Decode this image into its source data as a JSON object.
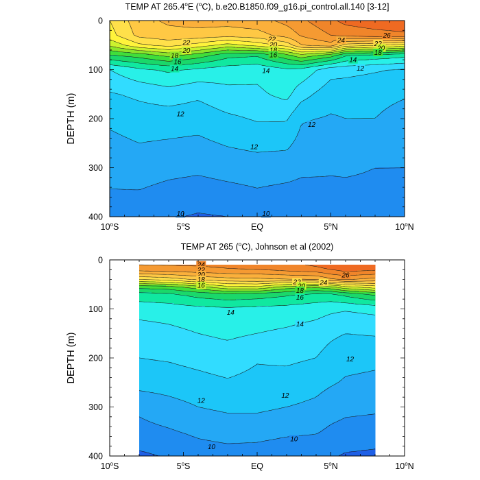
{
  "chart_data": [
    {
      "type": "contour",
      "title": "TEMP AT 265.4°E (°C), b.e20.B1850.f09_g16.pi_control.all.140 [3-12]",
      "title_parts": [
        "TEMP AT 265.4",
        "o",
        "E (",
        "o",
        "C), b.e20.B1850.f09_g16.pi_control.all.140 [3-12]"
      ],
      "xlabel": "",
      "ylabel": "DEPTH (m)",
      "x_ticks": [
        {
          "value": -10,
          "label": "10",
          "sup": "o",
          "suffix": "S"
        },
        {
          "value": -5,
          "label": "5",
          "sup": "o",
          "suffix": "S"
        },
        {
          "value": 0,
          "label": "EQ",
          "sup": "",
          "suffix": ""
        },
        {
          "value": 5,
          "label": "5",
          "sup": "o",
          "suffix": "N"
        },
        {
          "value": 10,
          "label": "10",
          "sup": "o",
          "suffix": "N"
        }
      ],
      "y_ticks": [
        0,
        100,
        200,
        300,
        400
      ],
      "xlim": [
        -10,
        10
      ],
      "ylim": [
        400,
        0
      ],
      "y_inverted": true,
      "data_xlim": [
        -10,
        10
      ],
      "contour_interval": 1,
      "color_levels": [
        {
          "max": 10,
          "color": "#1e5fe6"
        },
        {
          "max": 11,
          "color": "#1f8cf0"
        },
        {
          "max": 12,
          "color": "#24a8f5"
        },
        {
          "max": 13,
          "color": "#1cc6f8"
        },
        {
          "max": 14,
          "color": "#31dcff"
        },
        {
          "max": 15,
          "color": "#28f0e8"
        },
        {
          "max": 16,
          "color": "#10e8a0"
        },
        {
          "max": 17,
          "color": "#1ad86a"
        },
        {
          "max": 18,
          "color": "#40de3a"
        },
        {
          "max": 19,
          "color": "#8ee52a"
        },
        {
          "max": 20,
          "color": "#cdf22e"
        },
        {
          "max": 21,
          "color": "#fff33b"
        },
        {
          "max": 22,
          "color": "#ffe04a"
        },
        {
          "max": 23,
          "color": "#ffc844"
        },
        {
          "max": 24,
          "color": "#fbb03b"
        },
        {
          "max": 25,
          "color": "#f59a32"
        },
        {
          "max": 26,
          "color": "#f0852a"
        },
        {
          "max": 27,
          "color": "#ef6a22"
        },
        {
          "max": 99,
          "color": "#e8421b"
        }
      ],
      "profile_depths": [
        0,
        30,
        50,
        70,
        100,
        150,
        200,
        300,
        400
      ],
      "profiles": [
        {
          "x": -10,
          "t": [
            21.0,
            20.6,
            19.2,
            17.0,
            14.0,
            12.9,
            12.2,
            11.3,
            10.6
          ]
        },
        {
          "x": -8,
          "t": [
            22.6,
            22.3,
            20.8,
            17.5,
            14.8,
            13.2,
            12.5,
            11.5,
            10.4
          ]
        },
        {
          "x": -6,
          "t": [
            23.2,
            22.6,
            21.4,
            18.4,
            15.2,
            13.5,
            12.5,
            11.3,
            10.1
          ]
        },
        {
          "x": -4,
          "t": [
            23.4,
            22.6,
            20.6,
            17.6,
            14.8,
            13.2,
            12.4,
            11.2,
            9.9
          ]
        },
        {
          "x": -2,
          "t": [
            23.4,
            22.4,
            19.6,
            16.4,
            14.5,
            13.7,
            12.8,
            11.4,
            10.0
          ]
        },
        {
          "x": 0,
          "t": [
            23.6,
            22.6,
            20.4,
            16.2,
            14.3,
            13.8,
            13.1,
            11.5,
            10.3
          ]
        },
        {
          "x": 2,
          "t": [
            24.3,
            23.4,
            21.4,
            17.8,
            14.8,
            14.3,
            13.1,
            11.4,
            10.1
          ]
        },
        {
          "x": 3,
          "t": [
            24.8,
            24.1,
            23.0,
            18.8,
            14.7,
            13.4,
            12.1,
            11.2,
            10.2
          ]
        },
        {
          "x": 5,
          "t": [
            25.8,
            25.0,
            23.6,
            17.6,
            13.4,
            12.4,
            11.9,
            11.1,
            10.5
          ]
        },
        {
          "x": 6,
          "t": [
            26.3,
            25.3,
            21.6,
            16.2,
            13.3,
            12.4,
            12.0,
            11.1,
            10.6
          ]
        },
        {
          "x": 8,
          "t": [
            26.6,
            25.6,
            21.2,
            15.8,
            13.1,
            12.3,
            12.0,
            11.0,
            10.7
          ]
        },
        {
          "x": 10,
          "t": [
            26.7,
            25.8,
            20.6,
            15.4,
            12.9,
            12.1,
            11.6,
            11.0,
            10.6
          ]
        }
      ],
      "contour_labels": [
        {
          "text": "22",
          "x": -4.8,
          "depth": 45
        },
        {
          "text": "20",
          "x": -4.8,
          "depth": 61
        },
        {
          "text": "18",
          "x": -5.6,
          "depth": 71
        },
        {
          "text": "16",
          "x": -5.4,
          "depth": 84
        },
        {
          "text": "14",
          "x": -5.6,
          "depth": 98
        },
        {
          "text": "14",
          "x": 0.6,
          "depth": 102
        },
        {
          "text": "12",
          "x": -5.2,
          "depth": 190
        },
        {
          "text": "12",
          "x": -0.2,
          "depth": 257
        },
        {
          "text": "12",
          "x": 3.7,
          "depth": 212
        },
        {
          "text": "10",
          "x": -5.2,
          "depth": 394
        },
        {
          "text": "10",
          "x": 0.6,
          "depth": 394
        },
        {
          "text": "22",
          "x": 1.0,
          "depth": 38
        },
        {
          "text": "20",
          "x": 1.1,
          "depth": 49
        },
        {
          "text": "18",
          "x": 1.1,
          "depth": 60
        },
        {
          "text": "16",
          "x": 1.1,
          "depth": 70
        },
        {
          "text": "24",
          "x": 5.7,
          "depth": 40
        },
        {
          "text": "26",
          "x": 8.8,
          "depth": 30
        },
        {
          "text": "22",
          "x": 8.2,
          "depth": 47
        },
        {
          "text": "20",
          "x": 8.4,
          "depth": 56
        },
        {
          "text": "18",
          "x": 8.2,
          "depth": 65
        },
        {
          "text": "14",
          "x": 6.5,
          "depth": 80
        },
        {
          "text": "12",
          "x": 7.0,
          "depth": 97
        }
      ]
    },
    {
      "type": "contour",
      "title": "TEMP AT 265 (°C), Johnson et al (2002)",
      "title_parts": [
        "TEMP AT 265 (",
        "o",
        "C), Johnson et al (2002)"
      ],
      "xlabel": "",
      "ylabel": "DEPTH (m)",
      "x_ticks": [
        {
          "value": -10,
          "label": "10",
          "sup": "o",
          "suffix": "S"
        },
        {
          "value": -5,
          "label": "5",
          "sup": "o",
          "suffix": "S"
        },
        {
          "value": 0,
          "label": "EQ",
          "sup": "",
          "suffix": ""
        },
        {
          "value": 5,
          "label": "5",
          "sup": "o",
          "suffix": "N"
        },
        {
          "value": 10,
          "label": "10",
          "sup": "o",
          "suffix": "N"
        }
      ],
      "y_ticks": [
        0,
        100,
        200,
        300,
        400
      ],
      "xlim": [
        -10,
        10
      ],
      "ylim": [
        400,
        0
      ],
      "y_inverted": true,
      "data_xlim": [
        -8,
        8
      ],
      "data_ylim": [
        10,
        400
      ],
      "contour_interval": 1,
      "color_levels": [
        {
          "max": 10,
          "color": "#1e5fe6"
        },
        {
          "max": 11,
          "color": "#1f8cf0"
        },
        {
          "max": 12,
          "color": "#24a8f5"
        },
        {
          "max": 13,
          "color": "#1cc6f8"
        },
        {
          "max": 14,
          "color": "#31dcff"
        },
        {
          "max": 15,
          "color": "#28f0e8"
        },
        {
          "max": 16,
          "color": "#10e8a0"
        },
        {
          "max": 17,
          "color": "#1ad86a"
        },
        {
          "max": 18,
          "color": "#40de3a"
        },
        {
          "max": 19,
          "color": "#8ee52a"
        },
        {
          "max": 20,
          "color": "#cdf22e"
        },
        {
          "max": 21,
          "color": "#fff33b"
        },
        {
          "max": 22,
          "color": "#ffe04a"
        },
        {
          "max": 23,
          "color": "#ffc844"
        },
        {
          "max": 24,
          "color": "#fbb03b"
        },
        {
          "max": 25,
          "color": "#f59a32"
        },
        {
          "max": 26,
          "color": "#f0852a"
        },
        {
          "max": 27,
          "color": "#ef6a22"
        },
        {
          "max": 99,
          "color": "#e8421b"
        }
      ],
      "profile_depths": [
        0,
        20,
        40,
        55,
        70,
        100,
        150,
        200,
        250,
        300,
        350,
        400
      ],
      "profiles": [
        {
          "x": -8,
          "t": [
            25.6,
            24.4,
            21.0,
            17.4,
            15.6,
            14.4,
            13.5,
            13.0,
            12.4,
            11.2,
            10.7,
            9.8
          ]
        },
        {
          "x": -6,
          "t": [
            25.5,
            24.6,
            21.4,
            17.6,
            15.8,
            14.5,
            13.7,
            13.1,
            12.5,
            11.6,
            10.9,
            10.1
          ]
        },
        {
          "x": -4,
          "t": [
            25.5,
            24.7,
            22.2,
            18.6,
            16.4,
            14.7,
            14.0,
            13.3,
            12.7,
            12.0,
            11.2,
            10.5
          ]
        },
        {
          "x": -2,
          "t": [
            25.6,
            24.9,
            22.6,
            19.8,
            16.8,
            14.8,
            14.2,
            13.5,
            12.9,
            12.2,
            11.4,
            10.6
          ]
        },
        {
          "x": 0,
          "t": [
            25.7,
            25.0,
            22.7,
            19.9,
            16.6,
            14.7,
            14.0,
            13.1,
            12.7,
            12.2,
            11.4,
            10.5
          ]
        },
        {
          "x": 2,
          "t": [
            26.0,
            25.3,
            22.9,
            18.6,
            16.2,
            14.6,
            13.8,
            13.2,
            12.6,
            12.0,
            11.2,
            10.3
          ]
        },
        {
          "x": 4,
          "t": [
            26.8,
            25.6,
            23.0,
            18.2,
            15.8,
            14.4,
            13.5,
            13.0,
            12.3,
            11.8,
            11.1,
            10.2
          ]
        },
        {
          "x": 5,
          "t": [
            27.2,
            26.0,
            23.8,
            18.8,
            15.8,
            14.2,
            13.2,
            12.6,
            12.1,
            11.5,
            10.8,
            10.1
          ]
        },
        {
          "x": 6,
          "t": [
            27.4,
            26.4,
            24.1,
            19.8,
            16.3,
            14.1,
            13.0,
            12.3,
            11.9,
            11.3,
            10.6,
            9.9
          ]
        },
        {
          "x": 8,
          "t": [
            27.6,
            26.2,
            23.6,
            20.6,
            17.2,
            14.3,
            13.1,
            12.2,
            11.8,
            11.2,
            10.5,
            9.8
          ]
        }
      ],
      "contour_labels": [
        {
          "text": "24",
          "x": -3.8,
          "depth": 10
        },
        {
          "text": "22",
          "x": -3.8,
          "depth": 20
        },
        {
          "text": "20",
          "x": -3.8,
          "depth": 30
        },
        {
          "text": "18",
          "x": -3.8,
          "depth": 40
        },
        {
          "text": "16",
          "x": -3.8,
          "depth": 52
        },
        {
          "text": "14",
          "x": -1.8,
          "depth": 107
        },
        {
          "text": "14",
          "x": 2.9,
          "depth": 131
        },
        {
          "text": "22",
          "x": 2.7,
          "depth": 45
        },
        {
          "text": "20",
          "x": 3.0,
          "depth": 53
        },
        {
          "text": "18",
          "x": 2.9,
          "depth": 62
        },
        {
          "text": "16",
          "x": 2.9,
          "depth": 76
        },
        {
          "text": "24",
          "x": 4.5,
          "depth": 46
        },
        {
          "text": "26",
          "x": 6.0,
          "depth": 31
        },
        {
          "text": "12",
          "x": 6.3,
          "depth": 202
        },
        {
          "text": "12",
          "x": 1.9,
          "depth": 276
        },
        {
          "text": "12",
          "x": -3.8,
          "depth": 287
        },
        {
          "text": "10",
          "x": 2.5,
          "depth": 365
        },
        {
          "text": "10",
          "x": -3.1,
          "depth": 381
        }
      ]
    }
  ]
}
